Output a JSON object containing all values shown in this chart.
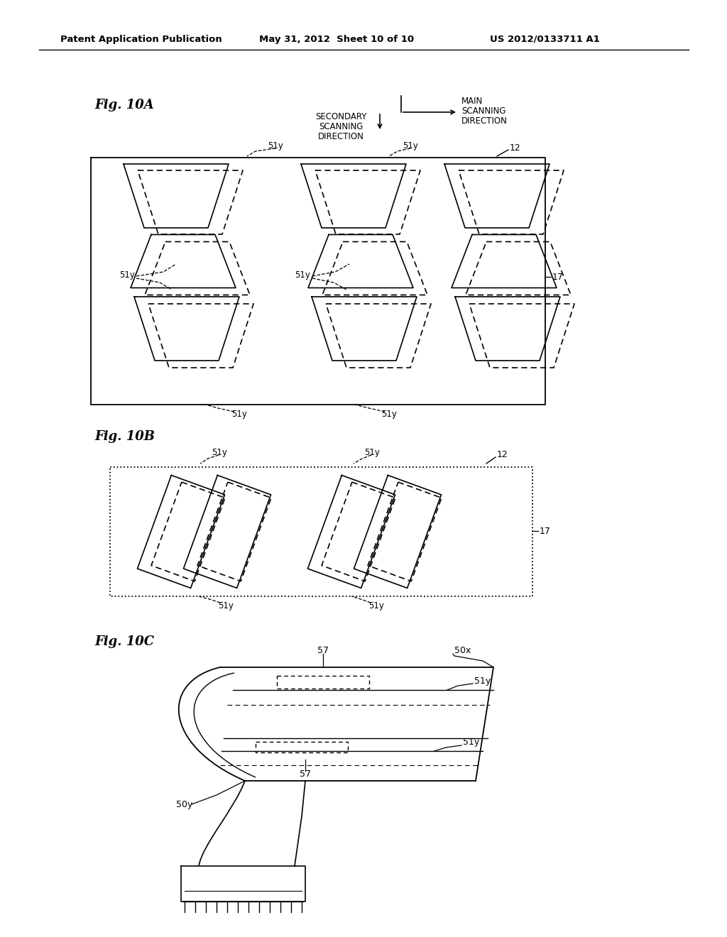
{
  "bg_color": "#ffffff",
  "header_left": "Patent Application Publication",
  "header_mid": "May 31, 2012  Sheet 10 of 10",
  "header_right": "US 2012/0133711 A1",
  "fig_label_10A": "Fig. 10A",
  "fig_label_10B": "Fig. 10B",
  "fig_label_10C": "Fig. 10C"
}
